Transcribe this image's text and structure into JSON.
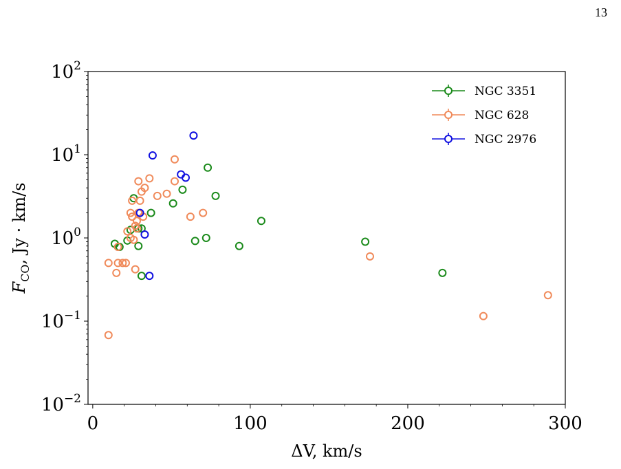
{
  "page_number": "13",
  "chart_data": {
    "type": "scatter",
    "xlabel": "ΔV, km/s",
    "ylabel": "F_CO, Jy · km/s",
    "xlim": [
      -3,
      300
    ],
    "ylim": [
      0.01,
      100
    ],
    "y_scale": "log",
    "x_ticks": [
      0,
      100,
      200,
      300
    ],
    "x_tick_labels": [
      "0",
      "100",
      "200",
      "300"
    ],
    "y_ticks": [
      0.01,
      0.1,
      1,
      10,
      100
    ],
    "y_tick_labels": [
      {
        "base": "10",
        "exp": "−2"
      },
      {
        "base": "10",
        "exp": "−1"
      },
      {
        "base": "10",
        "exp": "0"
      },
      {
        "base": "10",
        "exp": "1"
      },
      {
        "base": "10",
        "exp": "2"
      }
    ],
    "grid": false,
    "legend_position": "top-right",
    "series": [
      {
        "name": "NGC 3351",
        "color": "#1a8a1a",
        "points": [
          [
            14,
            0.85
          ],
          [
            17,
            0.78
          ],
          [
            22,
            0.93
          ],
          [
            24,
            1.25
          ],
          [
            26,
            3.0
          ],
          [
            29,
            1.3
          ],
          [
            29,
            0.8
          ],
          [
            31,
            1.3
          ],
          [
            31,
            0.35
          ],
          [
            37,
            2.0
          ],
          [
            51,
            2.6
          ],
          [
            57,
            3.8
          ],
          [
            65,
            0.92
          ],
          [
            73,
            7.0
          ],
          [
            72,
            1.0
          ],
          [
            78,
            3.2
          ],
          [
            93,
            0.8
          ],
          [
            107,
            1.6
          ],
          [
            173,
            0.9
          ],
          [
            222,
            0.38
          ]
        ]
      },
      {
        "name": "NGC 628",
        "color": "#f08a5a",
        "points": [
          [
            10,
            0.5
          ],
          [
            10,
            0.068
          ],
          [
            15,
            0.38
          ],
          [
            16,
            0.78
          ],
          [
            16,
            0.5
          ],
          [
            19,
            0.5
          ],
          [
            21,
            0.5
          ],
          [
            22,
            1.2
          ],
          [
            24,
            2.0
          ],
          [
            24,
            1.0
          ],
          [
            25,
            2.8
          ],
          [
            25,
            1.8
          ],
          [
            26,
            0.95
          ],
          [
            27,
            1.4
          ],
          [
            27,
            0.42
          ],
          [
            28,
            1.6
          ],
          [
            28,
            1.3
          ],
          [
            29,
            2.0
          ],
          [
            29,
            4.8
          ],
          [
            30,
            2.8
          ],
          [
            31,
            3.6
          ],
          [
            32,
            1.8
          ],
          [
            33,
            4.0
          ],
          [
            36,
            5.2
          ],
          [
            41,
            3.2
          ],
          [
            47,
            3.4
          ],
          [
            52,
            8.8
          ],
          [
            52,
            4.8
          ],
          [
            62,
            1.8
          ],
          [
            70,
            2.0
          ],
          [
            176,
            0.6
          ],
          [
            248,
            0.115
          ],
          [
            289,
            0.205
          ]
        ]
      },
      {
        "name": "NGC 2976",
        "color": "#1010e0",
        "points": [
          [
            30,
            2.0
          ],
          [
            33,
            1.1
          ],
          [
            36,
            0.35
          ],
          [
            38,
            9.8
          ],
          [
            56,
            5.8
          ],
          [
            59,
            5.3
          ],
          [
            64,
            17.0
          ]
        ]
      }
    ]
  }
}
